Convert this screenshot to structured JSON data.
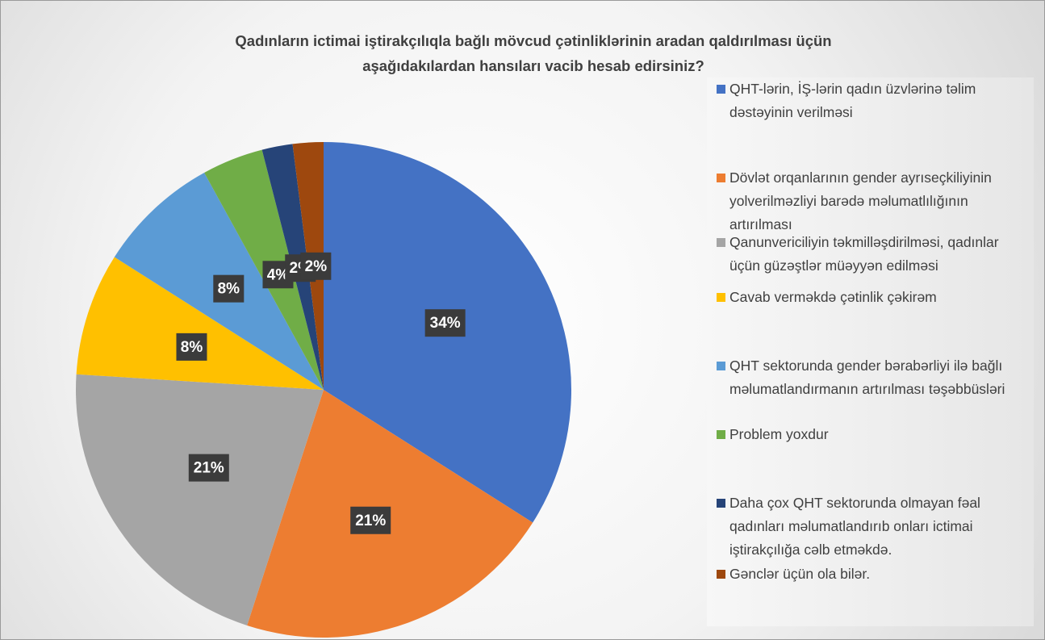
{
  "chart_data": {
    "type": "pie",
    "title": "Qadınların ictimai iştirakçılıqla bağlı mövcud  çətinliklərinin aradan qaldırılması üçün\naşağıdakılardan hansıları vacib hesab edirsiniz?",
    "categories": [
      "QHT-lərin, İŞ-lərin qadın üzvlərinə təlim dəstəyinin verilməsi",
      "Dövlət orqanlarının gender ayrıseçkiliyinin yolverilməzliyi barədə məlumatlılığının artırılması",
      "Qanunvericiliyin təkmilləşdirilməsi, qadınlar üçün  güzəştlər müəyyən edilməsi",
      "Cavab verməkdə çətinlik çəkirəm",
      "QHT sektorunda gender bərabərliyi ilə bağlı məlumatlandırmanın artırılması təşəbbüsləri",
      "Problem yoxdur",
      "Daha çox QHT sektorunda olmayan fəal qadınları məlumatlandırıb onları ictimai iştirakçılığa cəlb etməkdə.",
      "Gənclər üçün ola bilər."
    ],
    "values": [
      34,
      21,
      21,
      8,
      8,
      4,
      2,
      2
    ],
    "value_labels": [
      "34%",
      "21%",
      "21%",
      "8%",
      "8%",
      "4%",
      "2%",
      "2%"
    ],
    "colors": [
      "#4472c4",
      "#ed7d31",
      "#a5a5a5",
      "#ffc000",
      "#5b9bd5",
      "#70ad47",
      "#264478",
      "#9e480e"
    ],
    "legend": "right"
  }
}
